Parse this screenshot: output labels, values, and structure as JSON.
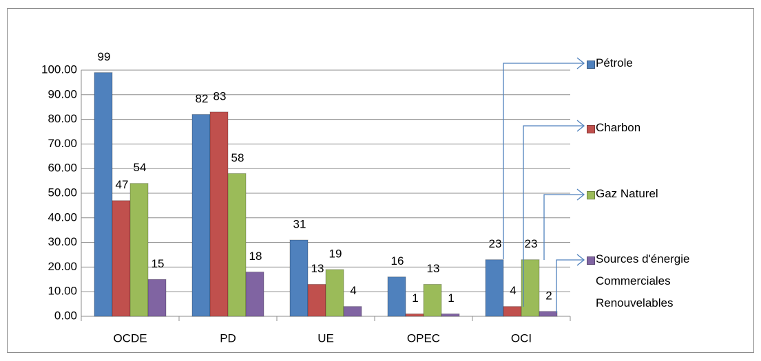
{
  "chart_data": {
    "type": "bar",
    "categories": [
      "OCDE",
      "PD",
      "UE",
      "OPEC",
      "OCI"
    ],
    "series": [
      {
        "name": "Pétrole",
        "color": "#4f81bd",
        "values": [
          99,
          82,
          31,
          16,
          23
        ]
      },
      {
        "name": "Charbon",
        "color": "#c0504d",
        "values": [
          47,
          83,
          13,
          1,
          4
        ]
      },
      {
        "name": "Gaz Naturel",
        "color": "#9bbb59",
        "values": [
          54,
          58,
          19,
          13,
          23
        ]
      },
      {
        "name": "Sources d'énergie Commerciales Renouvelables",
        "color": "#8064a2",
        "values": [
          15,
          18,
          4,
          1,
          2
        ]
      }
    ],
    "ylim": [
      0,
      100
    ],
    "yticks": [
      {
        "value": 0,
        "label": "0.00"
      },
      {
        "value": 10,
        "label": "10.00"
      },
      {
        "value": 20,
        "label": "20.00"
      },
      {
        "value": 30,
        "label": "30.00"
      },
      {
        "value": 40,
        "label": "40.00"
      },
      {
        "value": 50,
        "label": "50.00"
      },
      {
        "value": 60,
        "label": "60.00"
      },
      {
        "value": 70,
        "label": "70.00"
      },
      {
        "value": 80,
        "label": "80.00"
      },
      {
        "value": 90,
        "label": "90.00"
      },
      {
        "value": 100,
        "label": "100.00"
      }
    ],
    "grid": true
  }
}
